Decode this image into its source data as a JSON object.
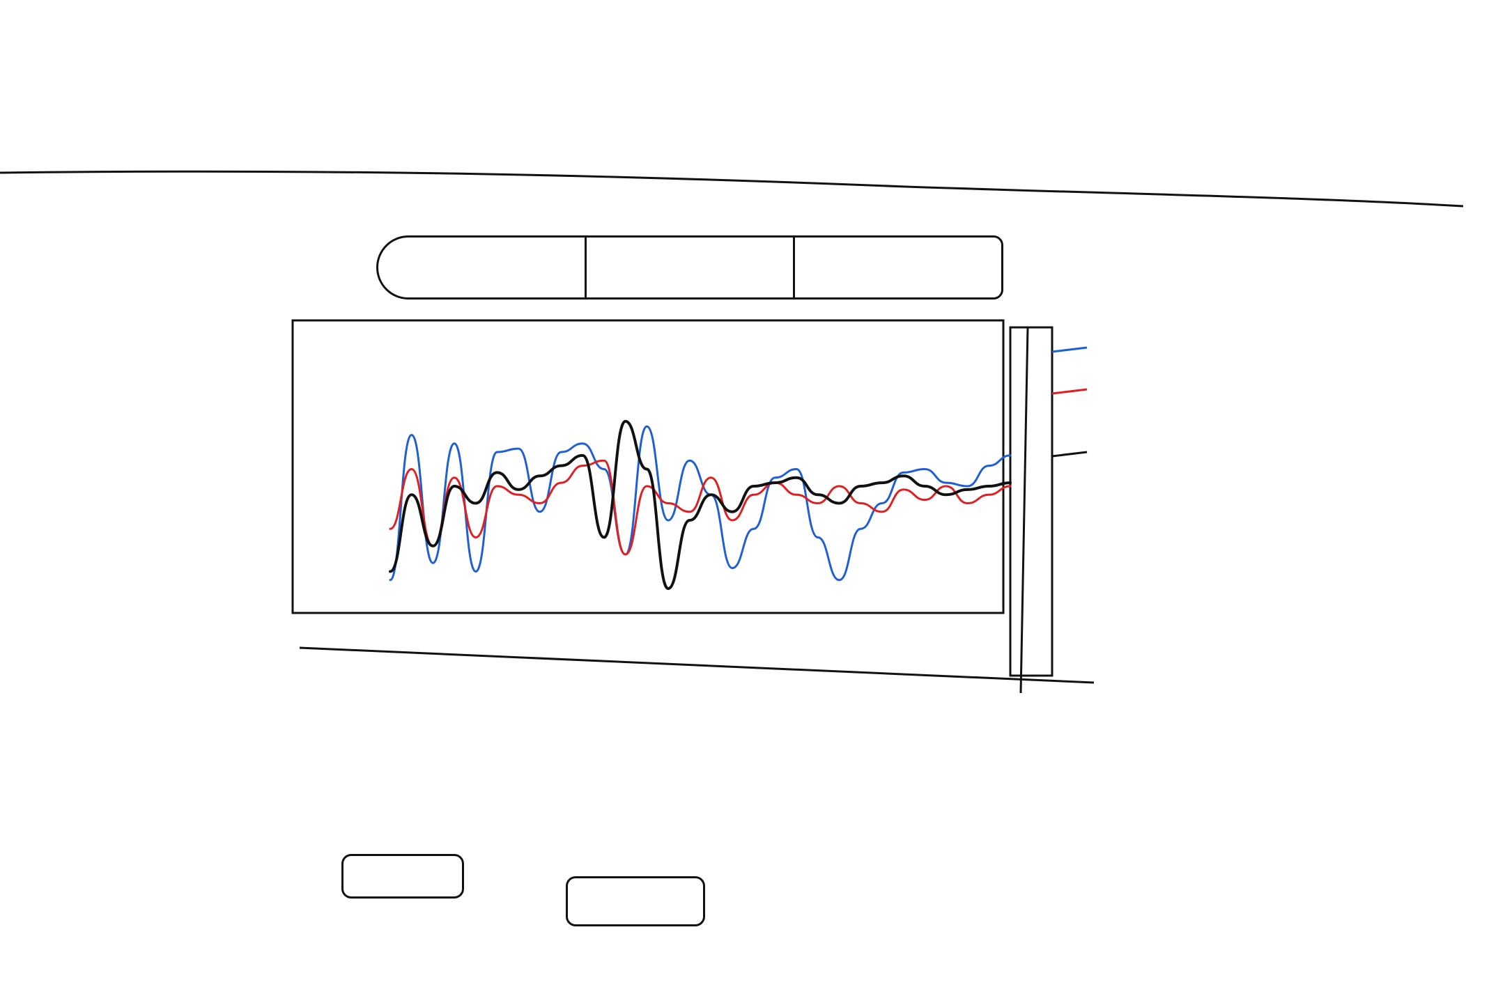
{
  "header": {
    "title": ""
  },
  "toolbar": {
    "label": "",
    "modes": [
      {
        "label": ""
      },
      {
        "label": ""
      },
      {
        "label": ""
      }
    ]
  },
  "chart": {
    "xlabel": "",
    "legend": [
      {
        "name": "",
        "color": "#1f5fd6"
      },
      {
        "name": "",
        "color": "#e02020"
      },
      {
        "name": "",
        "color": "#111111"
      }
    ]
  },
  "accuracy": {
    "metric_1_label": "",
    "metric_1_value": "",
    "metric_2_label": "",
    "metric_2_value": ""
  },
  "chart_data": {
    "type": "line",
    "title": "",
    "xlabel": "",
    "ylabel": "",
    "grid": false,
    "legend_placement": "right",
    "series": [
      {
        "color": "#1f5fd6",
        "x": [
          0,
          1,
          2,
          3,
          4,
          5,
          6,
          7,
          8,
          9,
          10,
          11,
          12,
          13,
          14,
          15,
          16,
          17,
          18,
          19,
          20,
          21,
          22,
          23,
          24,
          25,
          26,
          27,
          28,
          29
        ],
        "y": [
          0.05,
          0.9,
          0.15,
          0.85,
          0.1,
          0.8,
          0.82,
          0.45,
          0.8,
          0.85,
          0.7,
          0.2,
          0.95,
          0.4,
          0.75,
          0.55,
          0.12,
          0.35,
          0.65,
          0.7,
          0.3,
          0.05,
          0.35,
          0.5,
          0.68,
          0.7,
          0.62,
          0.6,
          0.72,
          0.78
        ]
      },
      {
        "color": "#e02020",
        "x": [
          0,
          1,
          2,
          3,
          4,
          5,
          6,
          7,
          8,
          9,
          10,
          11,
          12,
          13,
          14,
          15,
          16,
          17,
          18,
          19,
          20,
          21,
          22,
          23,
          24,
          25,
          26,
          27,
          28,
          29
        ],
        "y": [
          0.35,
          0.7,
          0.25,
          0.65,
          0.3,
          0.6,
          0.55,
          0.5,
          0.62,
          0.72,
          0.75,
          0.2,
          0.6,
          0.5,
          0.45,
          0.65,
          0.4,
          0.55,
          0.62,
          0.55,
          0.5,
          0.6,
          0.5,
          0.45,
          0.58,
          0.52,
          0.6,
          0.5,
          0.55,
          0.6
        ]
      },
      {
        "color": "#111111",
        "x": [
          0,
          1,
          2,
          3,
          4,
          5,
          6,
          7,
          8,
          9,
          10,
          11,
          12,
          13,
          14,
          15,
          16,
          17,
          18,
          19,
          20,
          21,
          22,
          23,
          24,
          25,
          26,
          27,
          28,
          29
        ],
        "y": [
          0.1,
          0.55,
          0.25,
          0.6,
          0.5,
          0.68,
          0.58,
          0.66,
          0.72,
          0.78,
          0.3,
          0.98,
          0.7,
          0.0,
          0.4,
          0.55,
          0.45,
          0.6,
          0.62,
          0.65,
          0.55,
          0.5,
          0.6,
          0.62,
          0.66,
          0.6,
          0.55,
          0.58,
          0.6,
          0.62
        ]
      }
    ]
  }
}
